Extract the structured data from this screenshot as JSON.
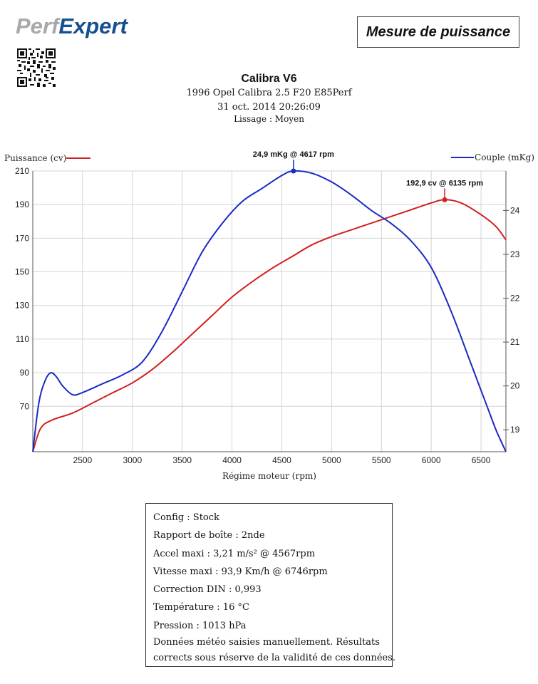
{
  "header": {
    "brand": "PerfExpert",
    "report_label": "Mesure de puissance",
    "vehicle_title": "Calibra V6",
    "vehicle_desc": "1996 Opel Calibra 2.5 F20 E85Perf",
    "datetime": "31 oct. 2014 20:26:09",
    "smoothing": "Lissage : Moyen"
  },
  "chart_data": {
    "type": "line",
    "xlabel": "Régime moteur (rpm)",
    "xlim": [
      2000,
      6750
    ],
    "x_ticks": [
      2500,
      3000,
      3500,
      4000,
      4500,
      5000,
      5500,
      6000,
      6500
    ],
    "left_axis": {
      "label": "Puissance (cv)",
      "ylim": [
        43,
        210
      ],
      "ticks": [
        70,
        90,
        110,
        130,
        150,
        170,
        190,
        210
      ]
    },
    "right_axis": {
      "label": "Couple (mKg)",
      "ylim": [
        18.5,
        24.9
      ],
      "ticks": [
        19,
        20,
        21,
        22,
        23,
        24
      ]
    },
    "series": [
      {
        "name": "Puissance (cv)",
        "axis": "left",
        "color": "#d21f1f",
        "x": [
          2000,
          2080,
          2200,
          2400,
          2600,
          2800,
          3000,
          3200,
          3400,
          3600,
          3800,
          4000,
          4200,
          4400,
          4600,
          4800,
          5000,
          5200,
          5400,
          5600,
          5800,
          6000,
          6135,
          6300,
          6500,
          6650,
          6750
        ],
        "y": [
          43,
          57,
          62,
          66,
          72,
          78,
          84,
          92,
          102,
          113,
          124,
          135,
          144,
          152,
          159,
          166,
          171,
          175,
          179,
          183,
          187,
          191,
          192.9,
          191,
          184,
          177,
          169
        ]
      },
      {
        "name": "Couple (mKg)",
        "axis": "right",
        "color": "#1a2ac4",
        "x": [
          2000,
          2060,
          2120,
          2180,
          2240,
          2300,
          2400,
          2500,
          2700,
          2900,
          3100,
          3300,
          3500,
          3700,
          3900,
          4100,
          4300,
          4500,
          4617,
          4800,
          5000,
          5200,
          5400,
          5600,
          5800,
          6000,
          6200,
          6400,
          6550,
          6650,
          6750
        ],
        "y": [
          18.5,
          19.6,
          20.1,
          20.3,
          20.2,
          20.0,
          19.8,
          19.85,
          20.05,
          20.25,
          20.55,
          21.25,
          22.15,
          23.05,
          23.7,
          24.2,
          24.5,
          24.8,
          24.9,
          24.85,
          24.65,
          24.35,
          24.0,
          23.7,
          23.3,
          22.7,
          21.7,
          20.5,
          19.6,
          19.0,
          18.5
        ]
      }
    ],
    "annotations": [
      {
        "text": "192,9 cv @ 6135 rpm",
        "x": 6135,
        "y": 192.9,
        "axis": "left",
        "color": "#d21f1f"
      },
      {
        "text": "24,9 mKg @ 4617 rpm",
        "x": 4617,
        "y": 24.9,
        "axis": "right",
        "color": "#1a2ac4"
      }
    ],
    "grid": true,
    "legend_placement": "top"
  },
  "info": {
    "lines": [
      "Config : Stock",
      "Rapport de boîte : 2nde",
      "Accel maxi : 3,21 m/s² @ 4567rpm",
      "Vitesse maxi : 93,9 Km/h @ 6746rpm",
      "Correction DIN : 0,993",
      "Température : 16 °C",
      "Pression : 1013 hPa"
    ],
    "note_1": "Données météo saisies manuellement. Résultats",
    "note_2": "corrects sous réserve de la validité de ces données."
  }
}
